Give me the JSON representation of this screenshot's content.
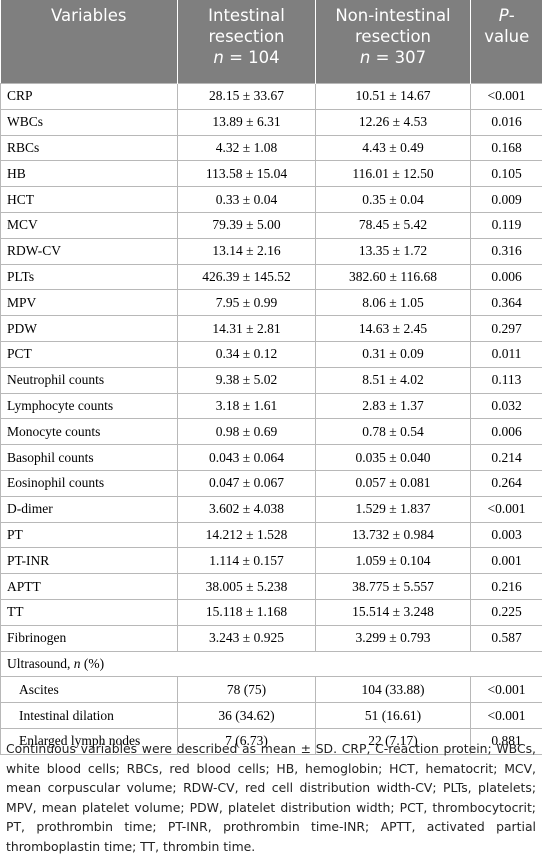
{
  "table": {
    "header": [
      {
        "text": "Variables"
      },
      {
        "text": "Intestinal resection",
        "n": "n",
        "count": "= 104"
      },
      {
        "text": "Non-intestinal resection",
        "n": "n",
        "count": "= 307"
      },
      {
        "italic": "P",
        "text": "-value"
      }
    ],
    "rows": [
      [
        "CRP",
        "28.15 ± 33.67",
        "10.51 ± 14.67",
        "<0.001"
      ],
      [
        "WBCs",
        "13.89 ± 6.31",
        "12.26 ± 4.53",
        "0.016"
      ],
      [
        "RBCs",
        "4.32 ± 1.08",
        "4.43 ± 0.49",
        "0.168"
      ],
      [
        "HB",
        "113.58 ± 15.04",
        "116.01 ± 12.50",
        "0.105"
      ],
      [
        "HCT",
        "0.33 ± 0.04",
        "0.35 ± 0.04",
        "0.009"
      ],
      [
        "MCV",
        "79.39 ± 5.00",
        "78.45 ± 5.42",
        "0.119"
      ],
      [
        "RDW-CV",
        "13.14 ± 2.16",
        "13.35 ± 1.72",
        "0.316"
      ],
      [
        "PLTs",
        "426.39 ± 145.52",
        "382.60 ± 116.68",
        "0.006"
      ],
      [
        "MPV",
        "7.95 ± 0.99",
        "8.06 ± 1.05",
        "0.364"
      ],
      [
        "PDW",
        "14.31 ± 2.81",
        "14.63 ± 2.45",
        "0.297"
      ],
      [
        "PCT",
        "0.34 ± 0.12",
        "0.31 ± 0.09",
        "0.011"
      ],
      [
        "Neutrophil counts",
        "9.38 ± 5.02",
        "8.51 ± 4.02",
        "0.113"
      ],
      [
        "Lymphocyte counts",
        "3.18 ± 1.61",
        "2.83 ± 1.37",
        "0.032"
      ],
      [
        "Monocyte counts",
        "0.98 ± 0.69",
        "0.78 ± 0.54",
        "0.006"
      ],
      [
        "Basophil counts",
        "0.043 ± 0.064",
        "0.035 ± 0.040",
        "0.214"
      ],
      [
        "Eosinophil counts",
        "0.047 ± 0.067",
        "0.057 ± 0.081",
        "0.264"
      ],
      [
        "D-dimer",
        "3.602 ± 4.038",
        "1.529 ± 1.837",
        "<0.001"
      ],
      [
        "PT",
        "14.212 ± 1.528",
        "13.732 ± 0.984",
        "0.003"
      ],
      [
        "PT-INR",
        "1.114 ± 0.157",
        "1.059 ± 0.104",
        "0.001"
      ],
      [
        "APTT",
        "38.005 ± 5.238",
        "38.775 ± 5.557",
        "0.216"
      ],
      [
        "TT",
        "15.118 ± 1.168",
        "15.514 ± 3.248",
        "0.225"
      ],
      [
        "Fibrinogen",
        "3.243 ± 0.925",
        "3.299 ± 0.793",
        "0.587"
      ]
    ],
    "group": {
      "label": "Ultrasound,",
      "n": "n",
      "unit": "(%)",
      "rows": [
        [
          "Ascites",
          "78 (75)",
          "104 (33.88)",
          "<0.001"
        ],
        [
          "Intestinal dilation",
          "36 (34.62)",
          "51 (16.61)",
          "<0.001"
        ],
        [
          "Enlarged lymph nodes",
          "7 (6.73)",
          "22 (7.17)",
          "0.881"
        ]
      ]
    }
  },
  "footnote": "Continuous variables were described as mean ± SD. CRP, C-reaction protein; WBCs, white blood cells; RBCs, red blood cells; HB, hemoglobin; HCT, hematocrit; MCV, mean corpuscular volume; RDW-CV, red cell distribution width-CV; PLTs, platelets; MPV, mean platelet volume; PDW, platelet distribution width; PCT, thrombocytocrit; PT, prothrombin time; PT-INR, prothrombin time-INR; APTT, activated partial thromboplastin time; TT, thrombin time."
}
